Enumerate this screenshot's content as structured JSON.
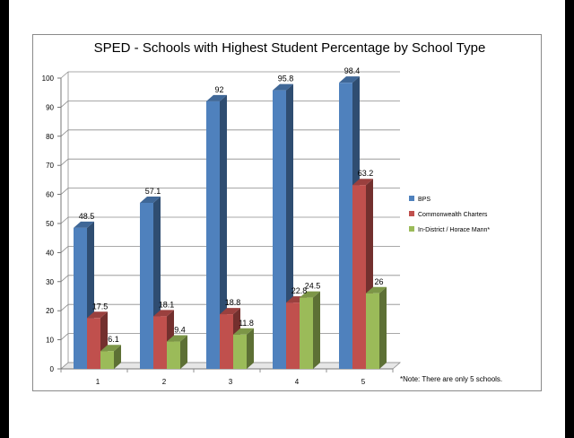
{
  "chart_data": {
    "type": "bar",
    "title": "SPED - Schools with Highest Student Percentage by School Type",
    "categories": [
      "1",
      "2",
      "3",
      "4",
      "5"
    ],
    "series": [
      {
        "name": "BPS",
        "values": [
          48.5,
          57.1,
          92,
          95.8,
          98.4
        ],
        "color": "#4f81bd"
      },
      {
        "name": "Commonwealth Charters",
        "values": [
          17.5,
          18.1,
          18.8,
          22.8,
          63.2
        ],
        "color": "#c0504d"
      },
      {
        "name": "In-District / Horace Mann*",
        "values": [
          6.1,
          9.4,
          11.8,
          24.5,
          26
        ],
        "color": "#9bbb59"
      }
    ],
    "ylim": [
      0,
      100
    ],
    "yticks": [
      0,
      10,
      20,
      30,
      40,
      50,
      60,
      70,
      80,
      90,
      100
    ],
    "grid": true,
    "legend": "right",
    "note": "*Note: There are only 5 schools."
  }
}
